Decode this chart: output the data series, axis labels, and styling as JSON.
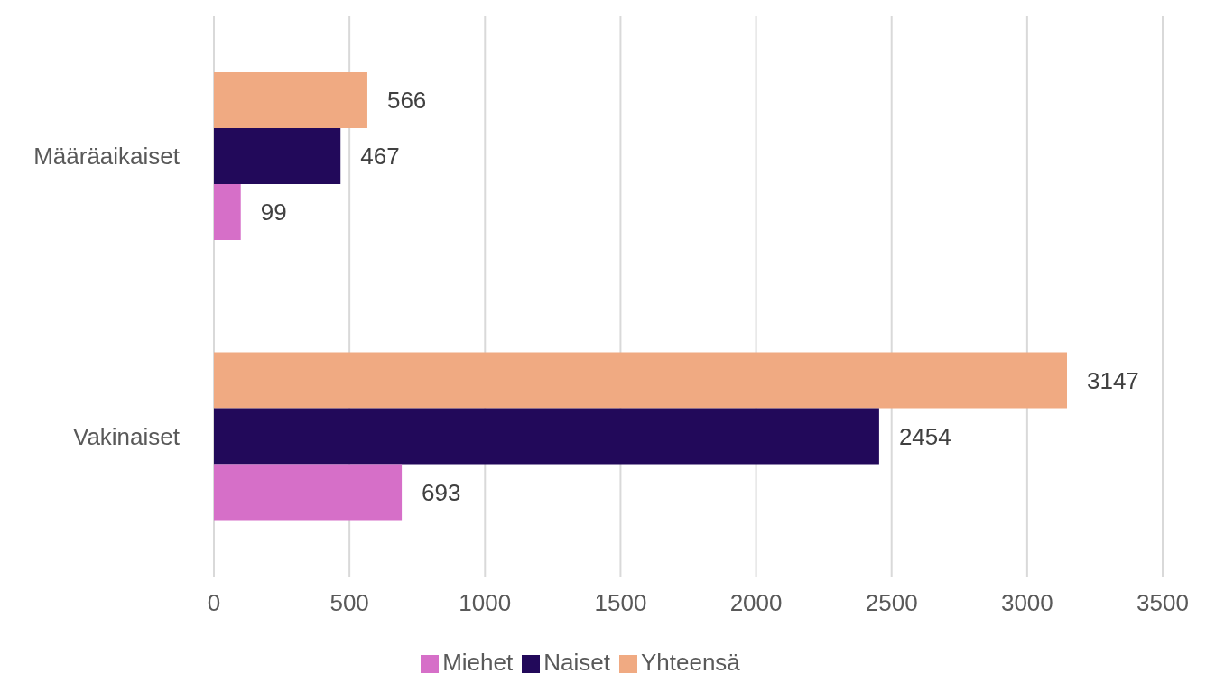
{
  "chart_data": {
    "type": "bar",
    "orientation": "horizontal",
    "categories": [
      "Määräaikaiset",
      "Vakinaiset"
    ],
    "series": [
      {
        "name": "Yhteensä",
        "color": "#f0aa82",
        "values": [
          566,
          3147
        ]
      },
      {
        "name": "Naiset",
        "color": "#22095a",
        "values": [
          467,
          2454
        ]
      },
      {
        "name": "Miehet",
        "color": "#d66fc8",
        "values": [
          99,
          693
        ]
      }
    ],
    "xlim": [
      0,
      3500
    ],
    "xticks": [
      0,
      500,
      1000,
      1500,
      2000,
      2500,
      3000,
      3500
    ],
    "grid": "x",
    "legend": "bottom",
    "data_labels": true
  }
}
